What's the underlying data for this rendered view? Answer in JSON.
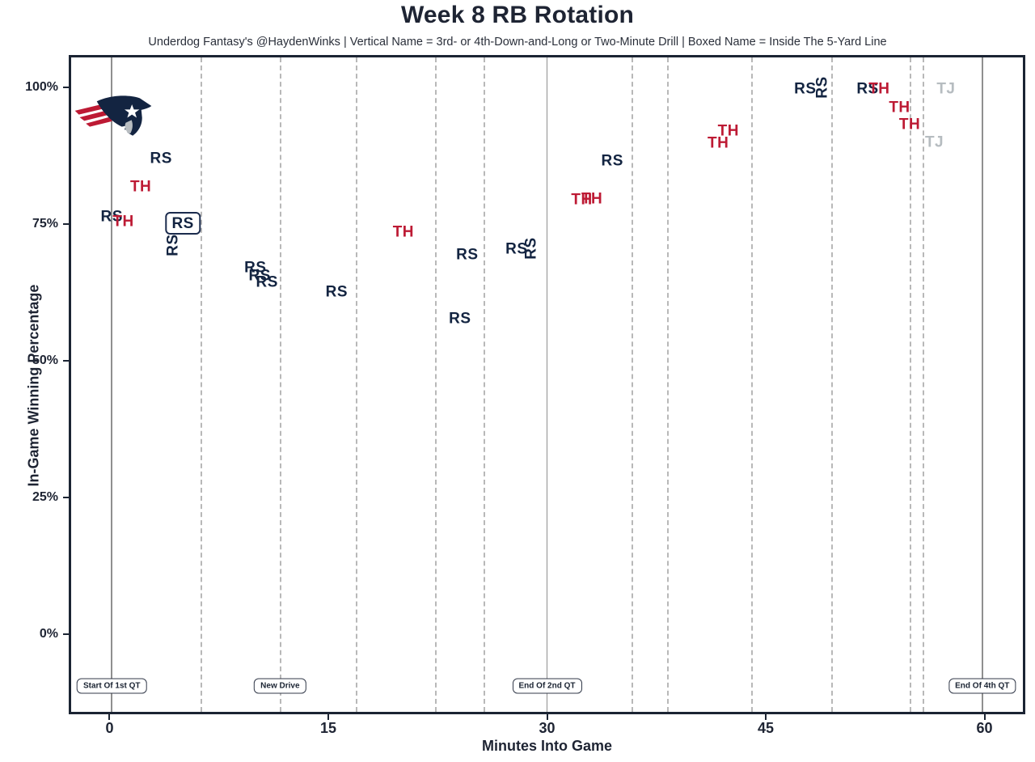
{
  "header": {
    "title": "Week 8 RB Rotation",
    "subtitle": "Underdog Fantasy's @HaydenWinks | Vertical Name = 3rd- or 4th-Down-and-Long or Two-Minute Drill | Boxed Name = Inside The 5-Yard Line"
  },
  "chart_data": {
    "type": "scatter",
    "title": "Week 8 RB Rotation",
    "xlabel": "Minutes Into Game",
    "ylabel": "In-Game Winning Percentage",
    "x_domain": [
      -2.8,
      62.8
    ],
    "y_domain": [
      -14.6,
      105.9
    ],
    "x_ticks": [
      {
        "value": 0,
        "label": "0"
      },
      {
        "value": 15,
        "label": "15"
      },
      {
        "value": 30,
        "label": "30"
      },
      {
        "value": 45,
        "label": "45"
      },
      {
        "value": 60,
        "label": "60"
      }
    ],
    "y_ticks": [
      {
        "value": 0,
        "label": "0%"
      },
      {
        "value": 25,
        "label": "25%"
      },
      {
        "value": 50,
        "label": "50%"
      },
      {
        "value": 75,
        "label": "75%"
      },
      {
        "value": 100,
        "label": "100%"
      }
    ],
    "grid": {
      "quarter_lines_minutes": [
        0,
        30,
        60
      ],
      "new_drive_lines_minutes": [
        6.1,
        11.6,
        16.8,
        22.3,
        25.6,
        35.8,
        38.3,
        44.1,
        49.6,
        55.0,
        55.9
      ]
    },
    "annotations": [
      {
        "label": "Start Of 1st QT",
        "minute": 0,
        "win_pct": -9.9
      },
      {
        "label": "New Drive",
        "minute": 11.6,
        "win_pct": -9.9
      },
      {
        "label": "End Of 2nd QT",
        "minute": 30,
        "win_pct": -9.9
      },
      {
        "label": "End Of 4th QT",
        "minute": 60,
        "win_pct": -9.9
      }
    ],
    "legend_note": "Vertical Name = 3rd- or 4th-Down-and-Long or Two-Minute Drill; Boxed Name = Inside The 5-Yard Line",
    "players": {
      "RS": {
        "color": "#132441"
      },
      "TH": {
        "color": "#bd1a34"
      },
      "TJ": {
        "color": "#b6bcc0"
      }
    },
    "team_logo": {
      "team": "new-england-patriots",
      "minute": 0.1,
      "win_pct": 94.7
    },
    "points": [
      {
        "label": "RS",
        "minute": 3.4,
        "win_pct": 87.3,
        "vertical": false,
        "boxed": false
      },
      {
        "label": "TH",
        "minute": 2.0,
        "win_pct": 82.1,
        "vertical": false,
        "boxed": false
      },
      {
        "label": "RS",
        "minute": 0.0,
        "win_pct": 76.5,
        "vertical": false,
        "boxed": false
      },
      {
        "label": "TH",
        "minute": 0.8,
        "win_pct": 75.7,
        "vertical": false,
        "boxed": false
      },
      {
        "label": "RS",
        "minute": 4.9,
        "win_pct": 75.4,
        "vertical": false,
        "boxed": true
      },
      {
        "label": "RS",
        "minute": 4.2,
        "win_pct": 71.4,
        "vertical": true,
        "boxed": false
      },
      {
        "label": "RS",
        "minute": 9.9,
        "win_pct": 67.2,
        "vertical": false,
        "boxed": false
      },
      {
        "label": "RS",
        "minute": 10.2,
        "win_pct": 65.7,
        "vertical": false,
        "boxed": false
      },
      {
        "label": "RS",
        "minute": 10.7,
        "win_pct": 64.5,
        "vertical": false,
        "boxed": false
      },
      {
        "label": "RS",
        "minute": 15.5,
        "win_pct": 62.7,
        "vertical": false,
        "boxed": false
      },
      {
        "label": "TH",
        "minute": 20.1,
        "win_pct": 73.7,
        "vertical": false,
        "boxed": false
      },
      {
        "label": "RS",
        "minute": 24.5,
        "win_pct": 69.5,
        "vertical": false,
        "boxed": false
      },
      {
        "label": "RS",
        "minute": 24.0,
        "win_pct": 57.8,
        "vertical": false,
        "boxed": false
      },
      {
        "label": "RS",
        "minute": 27.9,
        "win_pct": 70.6,
        "vertical": false,
        "boxed": false
      },
      {
        "label": "RS",
        "minute": 28.9,
        "win_pct": 70.8,
        "vertical": true,
        "boxed": false
      },
      {
        "label": "TH",
        "minute": 32.4,
        "win_pct": 79.7,
        "vertical": false,
        "boxed": false
      },
      {
        "label": "TH",
        "minute": 33.1,
        "win_pct": 79.9,
        "vertical": false,
        "boxed": false
      },
      {
        "label": "RS",
        "minute": 34.5,
        "win_pct": 86.8,
        "vertical": false,
        "boxed": false
      },
      {
        "label": "TH",
        "minute": 41.8,
        "win_pct": 90.1,
        "vertical": false,
        "boxed": false
      },
      {
        "label": "TH",
        "minute": 42.5,
        "win_pct": 92.3,
        "vertical": false,
        "boxed": false
      },
      {
        "label": "RS",
        "minute": 47.8,
        "win_pct": 100.1,
        "vertical": false,
        "boxed": false
      },
      {
        "label": "RS",
        "minute": 49.0,
        "win_pct": 100.4,
        "vertical": true,
        "boxed": false
      },
      {
        "label": "RS",
        "minute": 52.1,
        "win_pct": 100.1,
        "vertical": false,
        "boxed": false
      },
      {
        "label": "TH",
        "minute": 52.9,
        "win_pct": 100.1,
        "vertical": false,
        "boxed": false
      },
      {
        "label": "TH",
        "minute": 54.3,
        "win_pct": 96.7,
        "vertical": false,
        "boxed": false
      },
      {
        "label": "TH",
        "minute": 55.0,
        "win_pct": 93.6,
        "vertical": false,
        "boxed": false
      },
      {
        "label": "TJ",
        "minute": 57.5,
        "win_pct": 100.1,
        "vertical": false,
        "boxed": false
      },
      {
        "label": "TJ",
        "minute": 56.7,
        "win_pct": 90.2,
        "vertical": false,
        "boxed": false
      }
    ]
  }
}
